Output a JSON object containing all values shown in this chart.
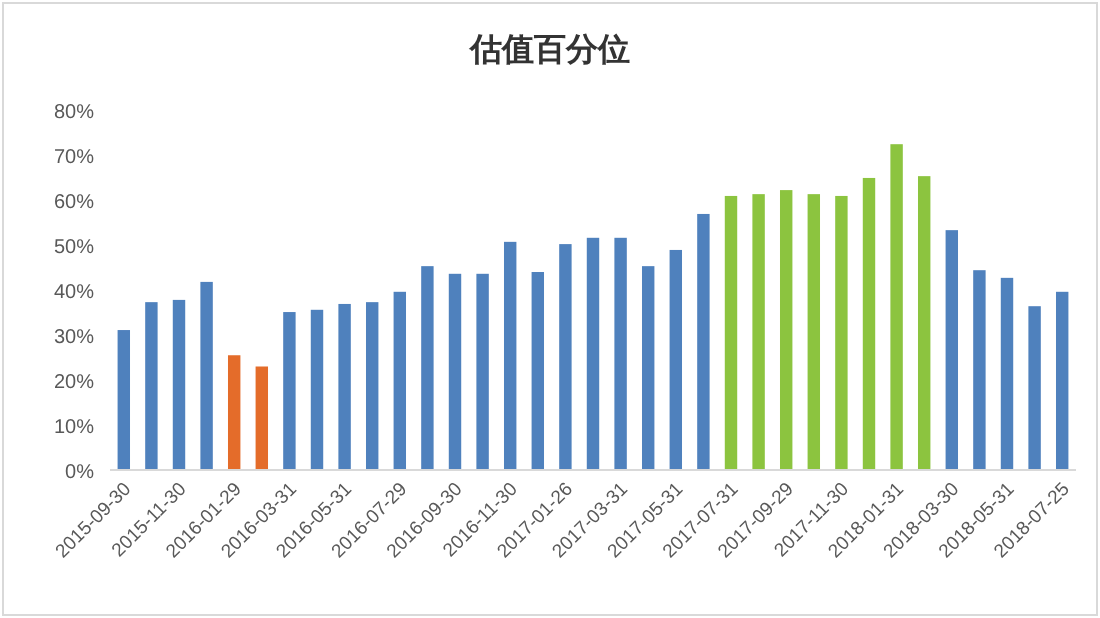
{
  "chart_data": {
    "type": "bar",
    "title": "估值百分位",
    "categories": [
      "2015-09-30",
      null,
      "2015-11-30",
      null,
      "2016-01-29",
      null,
      "2016-03-31",
      null,
      "2016-05-31",
      null,
      "2016-07-29",
      null,
      "2016-09-30",
      null,
      "2016-11-30",
      null,
      "2017-01-26",
      null,
      "2017-03-31",
      null,
      "2017-05-31",
      null,
      "2017-07-31",
      null,
      "2017-09-29",
      null,
      "2017-11-30",
      null,
      "2018-01-31",
      null,
      "2018-03-30",
      null,
      "2018-05-31",
      null,
      "2018-07-25"
    ],
    "values": [
      31.1,
      37.3,
      37.8,
      41.8,
      25.5,
      23.0,
      35.1,
      35.6,
      36.9,
      37.3,
      39.6,
      45.3,
      43.6,
      43.6,
      50.7,
      44.0,
      50.2,
      51.6,
      51.6,
      45.3,
      48.9,
      56.9,
      60.9,
      61.3,
      62.2,
      61.3,
      60.9,
      64.9,
      72.4,
      65.3,
      53.3,
      44.4,
      42.7,
      36.4,
      39.6
    ],
    "colors": [
      "#4f81bd",
      "#4f81bd",
      "#4f81bd",
      "#4f81bd",
      "#e46c2a",
      "#e46c2a",
      "#4f81bd",
      "#4f81bd",
      "#4f81bd",
      "#4f81bd",
      "#4f81bd",
      "#4f81bd",
      "#4f81bd",
      "#4f81bd",
      "#4f81bd",
      "#4f81bd",
      "#4f81bd",
      "#4f81bd",
      "#4f81bd",
      "#4f81bd",
      "#4f81bd",
      "#4f81bd",
      "#8cc43f",
      "#8cc43f",
      "#8cc43f",
      "#8cc43f",
      "#8cc43f",
      "#8cc43f",
      "#8cc43f",
      "#8cc43f",
      "#4f81bd",
      "#4f81bd",
      "#4f81bd",
      "#4f81bd",
      "#4f81bd"
    ],
    "ylim": [
      0,
      80
    ],
    "yticks": [
      {
        "value": 0,
        "label": "0%"
      },
      {
        "value": 10,
        "label": "10%"
      },
      {
        "value": 20,
        "label": "20%"
      },
      {
        "value": 30,
        "label": "30%"
      },
      {
        "value": 40,
        "label": "40%"
      },
      {
        "value": 50,
        "label": "50%"
      },
      {
        "value": 60,
        "label": "60%"
      },
      {
        "value": 70,
        "label": "70%"
      },
      {
        "value": 80,
        "label": "80%"
      }
    ],
    "grid": false
  }
}
